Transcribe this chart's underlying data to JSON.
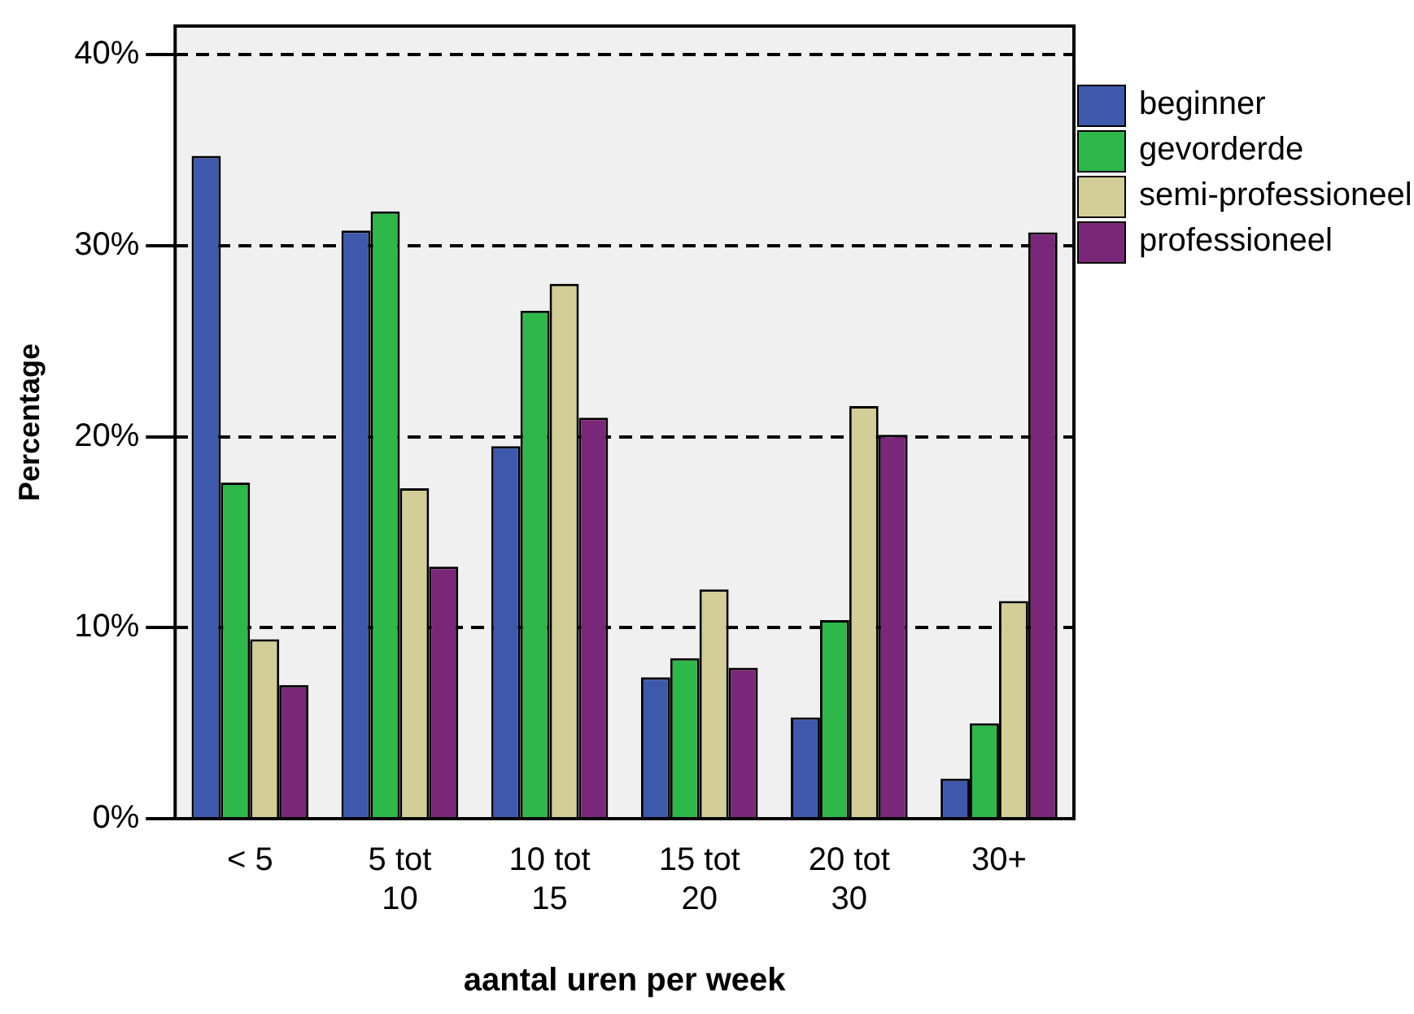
{
  "chart_data": {
    "type": "bar",
    "xlabel": "aantal uren per week",
    "ylabel": "Percentage",
    "categories": [
      "< 5",
      "5 tot 10",
      "10 tot 15",
      "15 tot 20",
      "20 tot 30",
      "30+"
    ],
    "series": [
      {
        "name": "beginner",
        "color": "#3e58ac",
        "values": [
          34.7,
          30.8,
          19.5,
          7.4,
          5.3,
          2.1
        ]
      },
      {
        "name": "gevorderde",
        "color": "#2fb84a",
        "values": [
          17.6,
          31.8,
          26.6,
          8.4,
          10.4,
          5.0
        ]
      },
      {
        "name": "semi-professioneel",
        "color": "#d3ce97",
        "values": [
          9.4,
          17.3,
          28.0,
          12.0,
          21.6,
          11.4
        ]
      },
      {
        "name": "professioneel",
        "color": "#7b2779",
        "values": [
          7.0,
          13.2,
          21.0,
          7.9,
          20.1,
          30.7
        ]
      }
    ],
    "ylim": [
      0,
      41.5
    ],
    "yticks": [
      {
        "value": 0,
        "label": "0%"
      },
      {
        "value": 10,
        "label": "10%"
      },
      {
        "value": 20,
        "label": "20%"
      },
      {
        "value": 30,
        "label": "30%"
      },
      {
        "value": 40,
        "label": "40%"
      }
    ],
    "grid": "y",
    "legend": "top right"
  }
}
